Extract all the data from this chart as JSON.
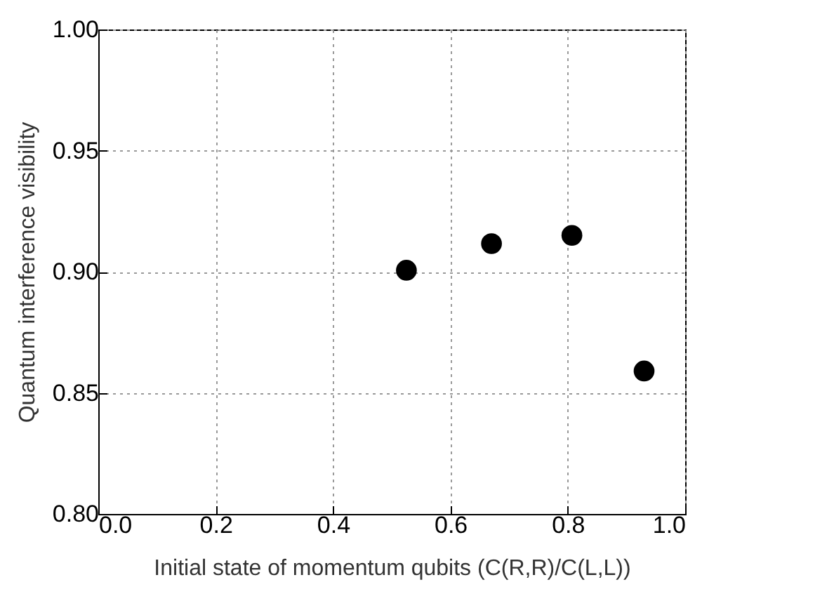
{
  "chart_data": {
    "type": "scatter",
    "xlabel": "Initial state of momentum qubits (C(R,R)/C(L,L))",
    "ylabel": "Quantum interference visibility",
    "x": [
      0.525,
      0.67,
      0.807,
      0.93
    ],
    "series": [
      {
        "color": "#000000",
        "values": [
          0.9006,
          0.9116,
          0.915,
          0.859
        ]
      }
    ],
    "xlim": [
      0,
      1
    ],
    "xticks": [
      {
        "value": 0,
        "label": "0.0"
      },
      0.2,
      0.4,
      0.6,
      0.8,
      {
        "value": 1,
        "label": "1.0"
      }
    ],
    "ylim": [
      0.8,
      1
    ],
    "yticks": [
      {
        "value": 0.8,
        "label": "0.80"
      },
      {
        "value": 0.85,
        "label": "0.85"
      },
      {
        "value": 0.9,
        "label": "0.90"
      },
      {
        "value": 0.95,
        "label": "0.95"
      },
      {
        "value": 1,
        "label": "1.00"
      }
    ],
    "grid": true,
    "marker": "circle",
    "legend": false
  }
}
